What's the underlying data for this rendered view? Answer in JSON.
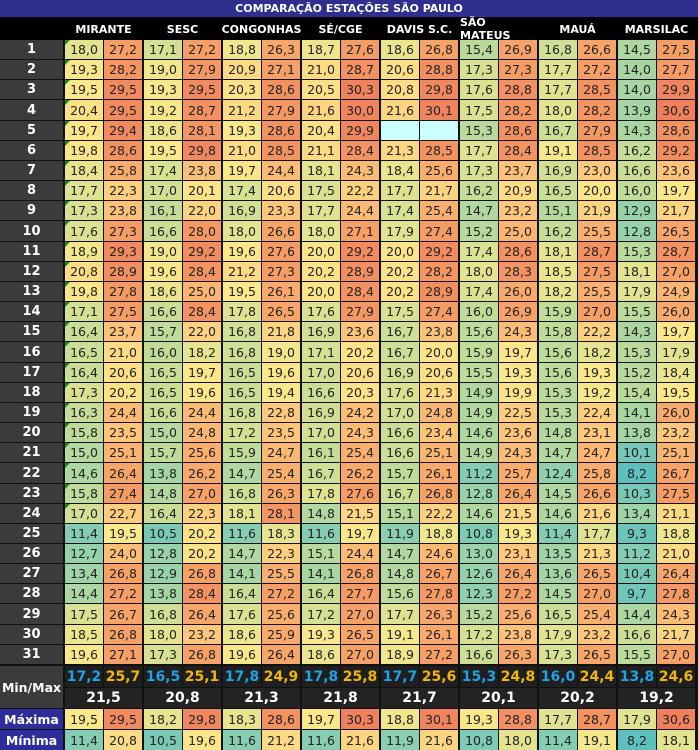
{
  "title": "COMPARAÇÃO ESTAÇÕES SÃO PAULO",
  "labels": {
    "minmax": "Min/Max",
    "maxima": "Máxima",
    "minima": "Mínima"
  },
  "days": [
    "1",
    "2",
    "3",
    "4",
    "5",
    "6",
    "7",
    "8",
    "9",
    "10",
    "11",
    "12",
    "13",
    "14",
    "15",
    "16",
    "17",
    "18",
    "19",
    "20",
    "21",
    "22",
    "23",
    "24",
    "25",
    "26",
    "27",
    "28",
    "29",
    "30",
    "31"
  ],
  "colors": {
    "title_bg": "#2e2f8e",
    "min_text": "#1ea3e6",
    "max_text": "#f2b705",
    "missing": "#ccffff",
    "label_bg": "#2d2d9c"
  },
  "stations": [
    {
      "name": "MIRANTE",
      "min": [
        "18,0",
        "19,3",
        "19,5",
        "20,4",
        "19,7",
        "19,8",
        "18,4",
        "17,7",
        "17,3",
        "17,6",
        "18,9",
        "20,8",
        "19,8",
        "17,1",
        "16,4",
        "16,5",
        "16,4",
        "17,3",
        "16,3",
        "15,8",
        "15,0",
        "14,6",
        "15,8",
        "17,0",
        "11,4",
        "12,7",
        "13,4",
        "14,4",
        "17,5",
        "18,5",
        "19,6"
      ],
      "max": [
        "27,2",
        "28,2",
        "29,5",
        "29,5",
        "29,4",
        "28,6",
        "25,8",
        "22,3",
        "23,8",
        "27,3",
        "29,3",
        "28,9",
        "27,8",
        "27,5",
        "23,7",
        "21,0",
        "20,6",
        "20,2",
        "24,4",
        "23,5",
        "25,1",
        "26,4",
        "27,4",
        "22,7",
        "19,5",
        "24,0",
        "26,8",
        "27,2",
        "26,7",
        "26,8",
        "27,1"
      ],
      "mean_min": "17,2",
      "mean_max": "25,7",
      "average": "21,5",
      "maxima": [
        "19,5",
        "29,5"
      ],
      "minima": [
        "11,4",
        "20,8"
      ]
    },
    {
      "name": "SESC",
      "min": [
        "17,1",
        "19,0",
        "19,3",
        "19,2",
        "18,6",
        "19,5",
        "17,4",
        "17,0",
        "16,1",
        "16,6",
        "19,0",
        "19,6",
        "18,6",
        "16,6",
        "15,7",
        "16,0",
        "16,5",
        "16,5",
        "16,6",
        "15,0",
        "15,7",
        "13,8",
        "14,8",
        "16,4",
        "10,5",
        "12,8",
        "12,9",
        "13,8",
        "16,8",
        "18,0",
        "17,3"
      ],
      "max": [
        "27,2",
        "27,9",
        "29,5",
        "28,7",
        "28,1",
        "29,8",
        "23,8",
        "20,1",
        "22,0",
        "28,0",
        "29,2",
        "28,4",
        "25,0",
        "28,4",
        "22,0",
        "18,2",
        "19,7",
        "19,6",
        "24,4",
        "24,8",
        "25,6",
        "26,2",
        "27,0",
        "22,3",
        "20,2",
        "20,2",
        "26,8",
        "28,4",
        "26,4",
        "23,2",
        "26,8"
      ],
      "mean_min": "16,5",
      "mean_max": "25,1",
      "average": "20,8",
      "maxima": [
        "18,2",
        "29,8"
      ],
      "minima": [
        "10,5",
        "19,6"
      ]
    },
    {
      "name": "CONGONHAS",
      "min": [
        "18,8",
        "20,9",
        "20,3",
        "21,2",
        "19,3",
        "21,0",
        "19,7",
        "17,4",
        "16,9",
        "18,0",
        "19,6",
        "21,2",
        "19,5",
        "17,8",
        "16,8",
        "16,8",
        "16,5",
        "16,5",
        "16,8",
        "17,2",
        "15,9",
        "14,7",
        "16,8",
        "18,1",
        "11,6",
        "14,7",
        "14,1",
        "16,4",
        "17,6",
        "18,6",
        "19,6"
      ],
      "max": [
        "26,3",
        "27,1",
        "28,6",
        "27,9",
        "28,6",
        "28,5",
        "24,4",
        "20,6",
        "23,3",
        "26,6",
        "27,6",
        "27,3",
        "26,1",
        "26,5",
        "21,8",
        "19,0",
        "19,6",
        "19,4",
        "22,8",
        "23,5",
        "24,7",
        "25,4",
        "26,3",
        "28,1",
        "18,3",
        "22,3",
        "25,5",
        "27,2",
        "25,6",
        "25,9",
        "26,4"
      ],
      "mean_min": "17,8",
      "mean_max": "24,9",
      "average": "21,3",
      "maxima": [
        "18,3",
        "28,6"
      ],
      "minima": [
        "11,6",
        "21,2"
      ]
    },
    {
      "name": "SÉ/CGE",
      "min": [
        "18,7",
        "21,0",
        "20,5",
        "21,6",
        "20,4",
        "21,1",
        "18,1",
        "17,5",
        "17,7",
        "18,0",
        "20,0",
        "20,2",
        "20,0",
        "17,6",
        "16,9",
        "17,1",
        "17,0",
        "16,6",
        "16,9",
        "17,0",
        "16,1",
        "16,7",
        "17,8",
        "14,8",
        "11,6",
        "15,1",
        "14,1",
        "16,4",
        "17,2",
        "19,3",
        "18,6"
      ],
      "max": [
        "27,6",
        "28,7",
        "30,3",
        "30,0",
        "29,9",
        "28,4",
        "24,3",
        "22,2",
        "24,4",
        "27,1",
        "29,2",
        "28,9",
        "28,4",
        "27,9",
        "23,6",
        "20,2",
        "20,6",
        "20,3",
        "24,2",
        "24,3",
        "25,4",
        "26,2",
        "27,6",
        "21,5",
        "19,7",
        "24,4",
        "26,8",
        "27,7",
        "27,0",
        "26,5",
        "27,0"
      ],
      "mean_min": "17,8",
      "mean_max": "25,8",
      "average": "21,8",
      "maxima": [
        "19,7",
        "30,3"
      ],
      "minima": [
        "11,6",
        "21,6"
      ]
    },
    {
      "name": "DAVIS S.C.",
      "min": [
        "18,6",
        "20,6",
        "20,8",
        "21,6",
        "",
        "21,3",
        "18,4",
        "17,7",
        "17,4",
        "17,9",
        "20,0",
        "20,2",
        "20,2",
        "17,5",
        "16,7",
        "16,7",
        "16,9",
        "17,6",
        "17,0",
        "16,6",
        "16,6",
        "15,7",
        "16,7",
        "15,1",
        "11,9",
        "14,7",
        "14,8",
        "15,6",
        "17,7",
        "19,1",
        "18,9"
      ],
      "max": [
        "26,8",
        "28,8",
        "29,8",
        "30,1",
        "",
        "28,5",
        "25,6",
        "21,7",
        "25,4",
        "27,4",
        "29,2",
        "28,2",
        "28,9",
        "27,4",
        "23,8",
        "20,0",
        "20,6",
        "21,3",
        "24,8",
        "23,4",
        "25,1",
        "26,1",
        "26,8",
        "22,2",
        "18,8",
        "24,6",
        "26,7",
        "27,8",
        "26,3",
        "26,1",
        "27,2"
      ],
      "mean_min": "17,7",
      "mean_max": "25,6",
      "average": "21,7",
      "maxima": [
        "18,8",
        "30,1"
      ],
      "minima": [
        "11,9",
        "21,6"
      ]
    },
    {
      "name": "SÃO MATEUS",
      "min": [
        "15,4",
        "17,3",
        "17,6",
        "17,5",
        "15,3",
        "17,7",
        "17,3",
        "16,2",
        "14,7",
        "15,2",
        "17,4",
        "18,0",
        "17,4",
        "16,0",
        "15,6",
        "15,9",
        "15,5",
        "14,9",
        "14,9",
        "14,6",
        "14,9",
        "11,2",
        "12,8",
        "14,6",
        "10,8",
        "13,0",
        "12,6",
        "12,3",
        "15,2",
        "17,2",
        "16,6"
      ],
      "max": [
        "26,9",
        "27,3",
        "28,8",
        "28,2",
        "28,6",
        "28,4",
        "23,7",
        "20,9",
        "23,2",
        "25,0",
        "28,6",
        "28,3",
        "26,0",
        "26,9",
        "24,3",
        "19,7",
        "19,3",
        "19,9",
        "22,5",
        "23,6",
        "24,3",
        "25,7",
        "26,4",
        "21,5",
        "19,3",
        "23,1",
        "26,4",
        "27,2",
        "25,6",
        "23,8",
        "26,3"
      ],
      "mean_min": "15,3",
      "mean_max": "24,8",
      "average": "20,1",
      "maxima": [
        "19,3",
        "28,8"
      ],
      "minima": [
        "10,8",
        "18,0"
      ]
    },
    {
      "name": "MAUÁ",
      "min": [
        "16,8",
        "17,7",
        "17,7",
        "18,0",
        "16,7",
        "19,1",
        "16,9",
        "16,5",
        "15,1",
        "16,2",
        "18,1",
        "18,5",
        "18,2",
        "15,9",
        "15,8",
        "15,6",
        "15,6",
        "15,3",
        "15,3",
        "14,8",
        "14,7",
        "12,4",
        "14,5",
        "14,6",
        "11,4",
        "13,5",
        "13,6",
        "14,5",
        "16,5",
        "17,9",
        "17,3"
      ],
      "max": [
        "26,6",
        "27,2",
        "28,5",
        "28,2",
        "27,9",
        "28,5",
        "23,0",
        "20,0",
        "21,9",
        "25,5",
        "28,7",
        "27,5",
        "25,5",
        "27,0",
        "22,2",
        "18,2",
        "19,3",
        "19,2",
        "22,4",
        "23,1",
        "24,7",
        "25,8",
        "26,6",
        "21,6",
        "17,7",
        "21,3",
        "26,5",
        "27,0",
        "25,4",
        "23,2",
        "26,5"
      ],
      "mean_min": "16,0",
      "mean_max": "24,4",
      "average": "20,2",
      "maxima": [
        "17,7",
        "28,7"
      ],
      "minima": [
        "11,4",
        "19,1"
      ]
    },
    {
      "name": "MARSILAC",
      "min": [
        "14,5",
        "14,0",
        "14,0",
        "13,9",
        "14,3",
        "16,2",
        "16,6",
        "16,0",
        "12,9",
        "12,8",
        "15,3",
        "18,1",
        "17,9",
        "15,5",
        "14,3",
        "15,3",
        "15,2",
        "15,4",
        "14,1",
        "13,8",
        "10,1",
        "8,2",
        "10,3",
        "13,4",
        "9,3",
        "11,2",
        "10,4",
        "9,7",
        "14,4",
        "16,6",
        "15,5"
      ],
      "max": [
        "27,5",
        "27,7",
        "29,9",
        "30,6",
        "28,6",
        "29,2",
        "23,6",
        "19,7",
        "21,7",
        "26,5",
        "28,7",
        "27,0",
        "24,9",
        "26,0",
        "19,7",
        "17,9",
        "18,4",
        "19,5",
        "26,0",
        "23,2",
        "25,1",
        "26,7",
        "27,5",
        "21,1",
        "18,8",
        "21,0",
        "26,4",
        "27,8",
        "24,3",
        "21,7",
        "27,0"
      ],
      "mean_min": "13,8",
      "mean_max": "24,6",
      "average": "19,2",
      "maxima": [
        "17,9",
        "30,6"
      ],
      "minima": [
        "8,2",
        "18,1"
      ]
    }
  ]
}
